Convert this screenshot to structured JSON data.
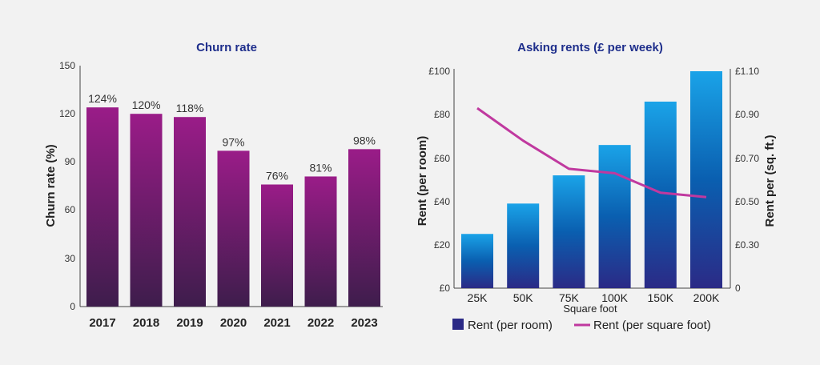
{
  "charts": {
    "left": {
      "title": "Churn rate",
      "ylabel": "Churn rate (%)",
      "yticks": [
        "0",
        "30",
        "60",
        "90",
        "120",
        "150"
      ]
    },
    "right": {
      "title": "Asking rents (£ per week)",
      "ylabel_left": "Rent (per room)",
      "ylabel_right": "Rent per (sq. ft.)",
      "xlabel": "Square foot",
      "yticks_left": [
        "£0",
        "£20",
        "£40",
        "£60",
        "£80",
        "£100"
      ],
      "yticks_right": [
        "0",
        "£0.30",
        "£0.50",
        "£0.70",
        "£0.90",
        "£1.10"
      ],
      "legend_bar": "Rent (per room)",
      "legend_line": "Rent (per square foot)"
    }
  },
  "colors": {
    "churn_top": "#9a1c88",
    "churn_bottom": "#3e1d4c",
    "rent_top": "#1aa3e8",
    "rent_mid": "#0a5fb0",
    "rent_bottom": "#2b2a86",
    "line": "#c0399f",
    "axis": "#444444"
  },
  "chart_data": [
    {
      "type": "bar",
      "title": "Churn rate",
      "xlabel": "",
      "ylabel": "Churn rate (%)",
      "ylim": [
        0,
        150
      ],
      "categories": [
        "2017",
        "2018",
        "2019",
        "2020",
        "2021",
        "2022",
        "2023"
      ],
      "values": [
        124,
        120,
        118,
        97,
        76,
        81,
        98
      ],
      "data_labels": [
        "124%",
        "120%",
        "118%",
        "97%",
        "76%",
        "81%",
        "98%"
      ],
      "grid": false
    },
    {
      "type": "bar",
      "title": "Asking rents (£ per week)",
      "xlabel": "Square foot",
      "ylabel": "Rent (per room)",
      "ylim": [
        0,
        100
      ],
      "categories": [
        "25K",
        "50K",
        "75K",
        "100K",
        "150K",
        "200K"
      ],
      "series": [
        {
          "name": "Rent (per room)",
          "type": "bar",
          "axis": "left",
          "values": [
            25,
            39,
            52,
            66,
            86,
            100
          ]
        },
        {
          "name": "Rent (per square foot)",
          "type": "line",
          "axis": "right",
          "values": [
            0.93,
            0.78,
            0.65,
            0.63,
            0.54,
            0.52
          ]
        }
      ],
      "right_axis": {
        "label": "Rent per (sq. ft.)",
        "ticks": [
          0,
          0.3,
          0.5,
          0.7,
          0.9,
          1.1
        ]
      },
      "legend": "bottom",
      "grid": false
    }
  ]
}
